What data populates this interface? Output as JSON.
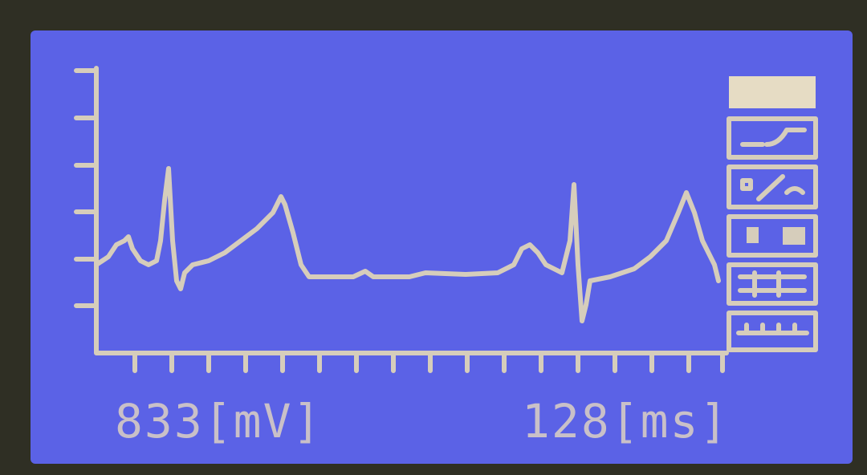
{
  "status": {
    "voltage": "833[mV]",
    "interval": "128[ms]"
  }
}
